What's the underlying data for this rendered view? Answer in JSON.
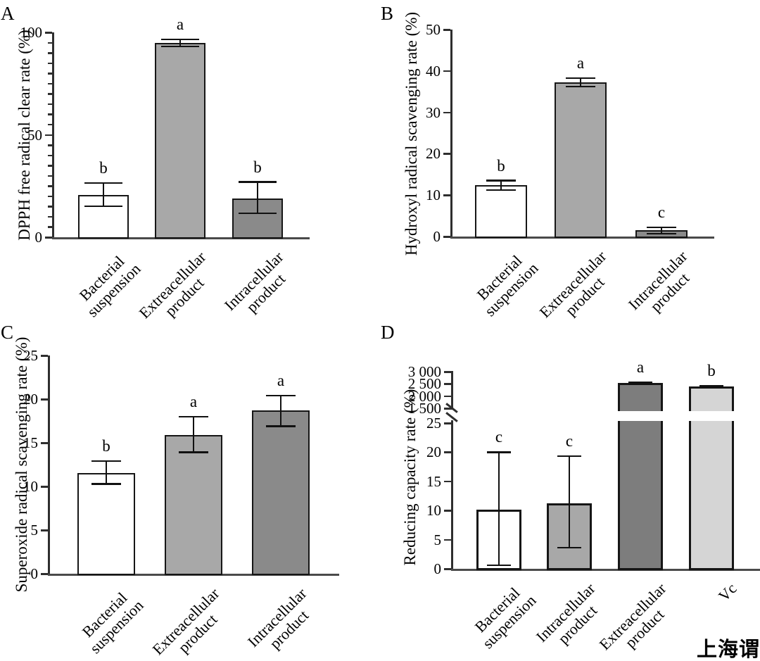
{
  "figure": {
    "watermark": "上海谓载"
  },
  "colors": {
    "bar_white": "#ffffff",
    "bar_medium_gray": "#a8a8a8",
    "bar_dark_gray": "#8a8a8a",
    "bar_darker_gray": "#7d7d7d",
    "bar_light_gray": "#d5d5d5",
    "axis": "#2e2e2e",
    "text": "#000000"
  },
  "chart_data": [
    {
      "panel": "A",
      "type": "bar",
      "title": "",
      "xlabel": "",
      "ylabel": "DPPH free radical clear rate (%)",
      "ylim": [
        0,
        100
      ],
      "yticks": [
        0,
        50,
        100
      ],
      "ytick_labels": [
        "0",
        "50",
        "100"
      ],
      "minor_tick_step": 5,
      "grid": false,
      "legend": null,
      "categories": [
        "Bacterial\nsuspension",
        "Extreacellular\nproduct",
        "Intracellular\nproduct"
      ],
      "values": [
        20.7,
        94.8,
        19.0
      ],
      "errors_up": [
        5.8,
        1.7,
        7.9
      ],
      "errors_down": [
        5.5,
        1.7,
        7.3
      ],
      "significance_letters": [
        "b",
        "a",
        "b"
      ],
      "bar_color_keys": [
        "bar_white",
        "bar_medium_gray",
        "bar_dark_gray"
      ]
    },
    {
      "panel": "B",
      "type": "bar",
      "title": "",
      "xlabel": "",
      "ylabel": "Hydroxyl radical scavenging rate (%)",
      "ylim": [
        0,
        50
      ],
      "yticks": [
        0,
        10,
        20,
        30,
        40,
        50
      ],
      "ytick_labels": [
        "0",
        "10",
        "20",
        "30",
        "40",
        "50"
      ],
      "minor_tick_step": null,
      "grid": false,
      "legend": null,
      "categories": [
        "Bacterial\nsuspension",
        "Extreacellular\nproduct",
        "Intracellular\nproduct"
      ],
      "values": [
        12.4,
        37.3,
        1.5
      ],
      "errors_up": [
        1.1,
        1.0,
        0.7
      ],
      "errors_down": [
        1.2,
        1.1,
        0.8
      ],
      "significance_letters": [
        "b",
        "a",
        "c"
      ],
      "bar_color_keys": [
        "bar_white",
        "bar_medium_gray",
        "bar_dark_gray"
      ]
    },
    {
      "panel": "C",
      "type": "bar",
      "title": "",
      "xlabel": "",
      "ylabel": "Superoxide radical scavenging rate (%)",
      "ylim": [
        0,
        25
      ],
      "yticks": [
        0,
        5,
        10,
        15,
        20,
        25
      ],
      "ytick_labels": [
        "0",
        "5",
        "10",
        "15",
        "20",
        "25"
      ],
      "minor_tick_step": null,
      "grid": false,
      "legend": null,
      "categories": [
        "Bacterial\nsuspension",
        "Extreacellular\nproduct",
        "Intracellular\nproduct"
      ],
      "values": [
        11.5,
        15.9,
        18.7
      ],
      "errors_up": [
        1.4,
        2.1,
        1.7
      ],
      "errors_down": [
        1.2,
        2.0,
        1.8
      ],
      "significance_letters": [
        "b",
        "a",
        "a"
      ],
      "bar_color_keys": [
        "bar_white",
        "bar_medium_gray",
        "bar_dark_gray"
      ]
    },
    {
      "panel": "D",
      "type": "bar",
      "title": "",
      "xlabel": "",
      "ylabel": "Reducing capacity rate (%)",
      "broken_axis": true,
      "lower_axis": {
        "ylim": [
          0,
          25
        ],
        "ticks": [
          0,
          5,
          10,
          15,
          20,
          25
        ],
        "tick_labels": [
          "0",
          "5",
          "10",
          "15",
          "20",
          "25"
        ]
      },
      "upper_axis": {
        "ylim": [
          1500,
          3000
        ],
        "ticks": [
          1500,
          2000,
          2500,
          3000
        ],
        "tick_labels": [
          "1 500",
          "2 000",
          "2 500",
          "3 000"
        ]
      },
      "grid": false,
      "legend": null,
      "categories": [
        "Bacterial\nsuspension",
        "Intracellular\nproduct",
        "Extreacellular\nproduct",
        "Vc"
      ],
      "values": [
        10.1,
        11.2,
        2530,
        2400
      ],
      "errors_up": [
        9.9,
        8.1,
        40,
        30
      ],
      "errors_down": [
        9.5,
        7.6,
        40,
        30
      ],
      "significance_letters": [
        "c",
        "c",
        "a",
        "b"
      ],
      "bar_color_keys": [
        "bar_white",
        "bar_medium_gray",
        "bar_darker_gray",
        "bar_light_gray"
      ]
    }
  ]
}
